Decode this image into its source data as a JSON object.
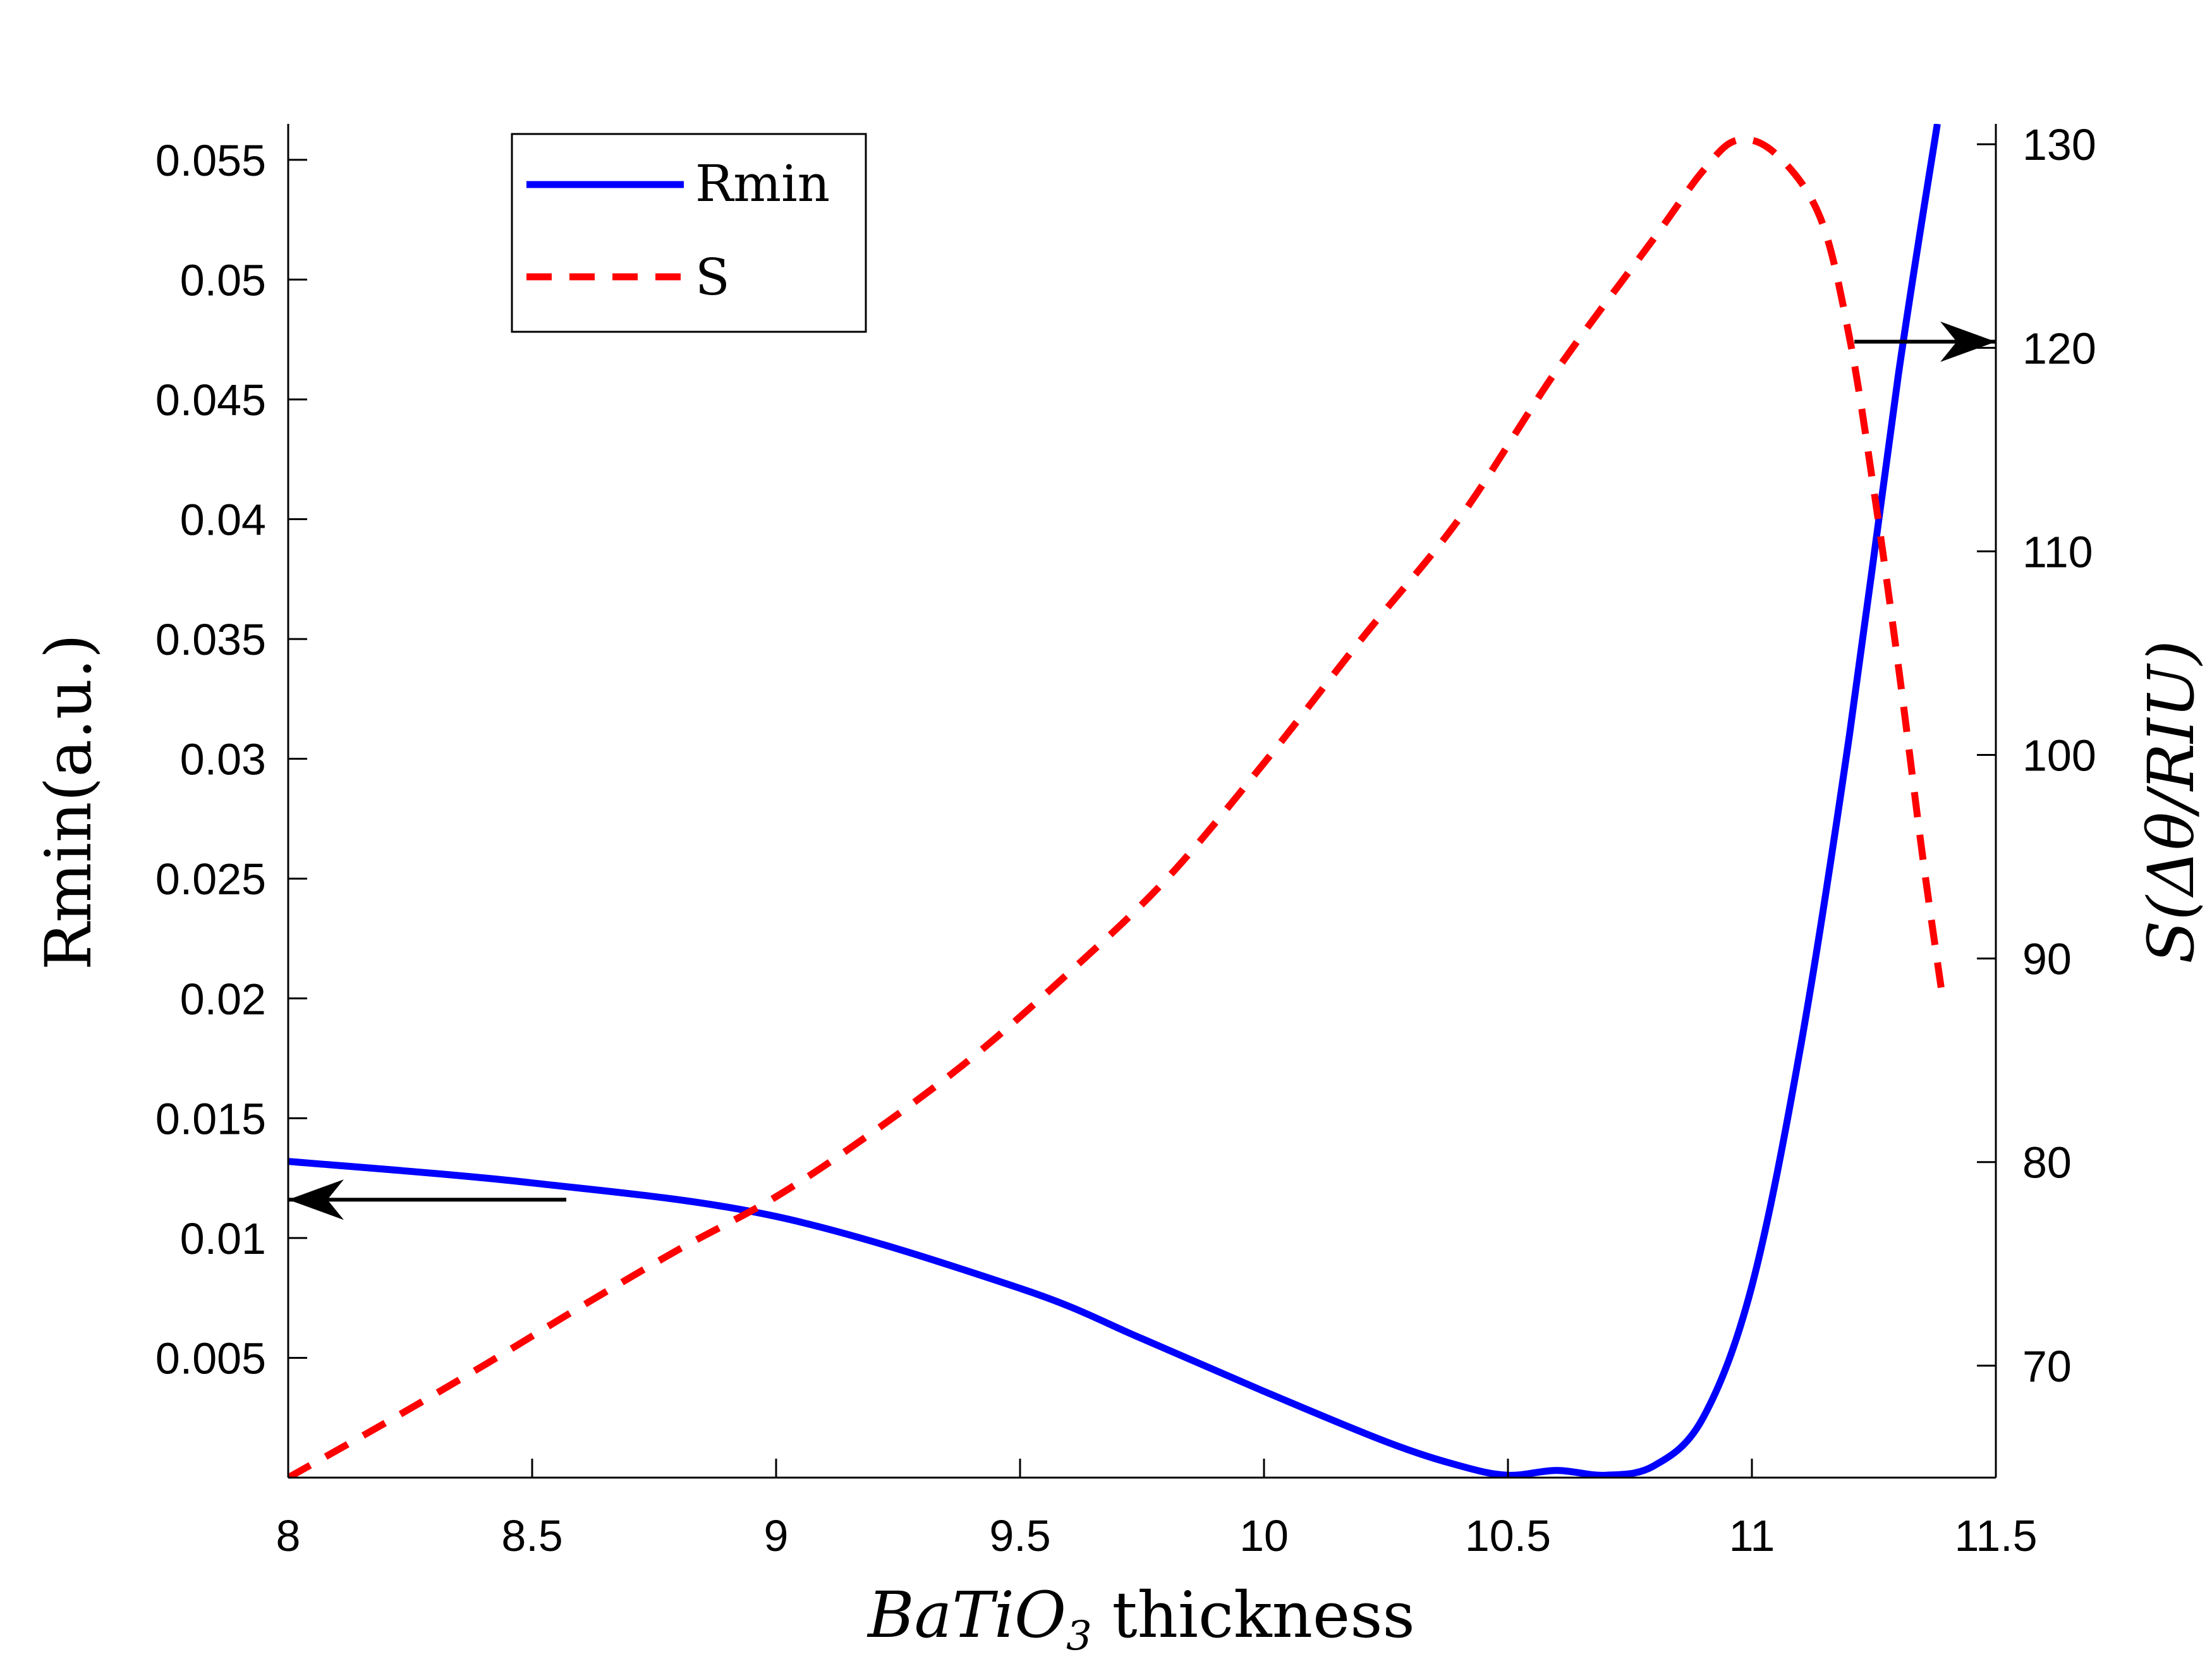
{
  "chart_data": {
    "type": "line",
    "xlabel": {
      "italic": "BaTiO",
      "sub": "3",
      "rest": " thickness"
    },
    "ylabel_left": "Rmin(a.u.)",
    "ylabel_right": "S(Δθ/RIU)",
    "xlim": [
      8,
      11.5
    ],
    "ylim_left": [
      0,
      0.0565
    ],
    "ylim_right": [
      64.5,
      131
    ],
    "x_ticks": [
      {
        "v": 8,
        "label": "8"
      },
      {
        "v": 8.5,
        "label": "8.5"
      },
      {
        "v": 9,
        "label": "9"
      },
      {
        "v": 9.5,
        "label": "9.5"
      },
      {
        "v": 10,
        "label": "10"
      },
      {
        "v": 10.5,
        "label": "10.5"
      },
      {
        "v": 11,
        "label": "11"
      },
      {
        "v": 11.5,
        "label": "11.5"
      }
    ],
    "y_left_ticks": [
      {
        "v": 0.005,
        "label": "0.005"
      },
      {
        "v": 0.01,
        "label": "0.01"
      },
      {
        "v": 0.015,
        "label": "0.015"
      },
      {
        "v": 0.02,
        "label": "0.02"
      },
      {
        "v": 0.025,
        "label": "0.025"
      },
      {
        "v": 0.03,
        "label": "0.03"
      },
      {
        "v": 0.035,
        "label": "0.035"
      },
      {
        "v": 0.04,
        "label": "0.04"
      },
      {
        "v": 0.045,
        "label": "0.045"
      },
      {
        "v": 0.05,
        "label": "0.05"
      },
      {
        "v": 0.055,
        "label": "0.055"
      }
    ],
    "y_right_ticks": [
      {
        "v": 70,
        "label": "70"
      },
      {
        "v": 80,
        "label": "80"
      },
      {
        "v": 90,
        "label": "90"
      },
      {
        "v": 100,
        "label": "100"
      },
      {
        "v": 110,
        "label": "110"
      },
      {
        "v": 120,
        "label": "120"
      },
      {
        "v": 130,
        "label": "130"
      }
    ],
    "legend": {
      "placement": "top-left",
      "entries": [
        "Rmin",
        "S"
      ]
    },
    "series": [
      {
        "name": "Rmin",
        "axis": "left",
        "color": "#0000ff",
        "style": "solid",
        "x": [
          8.0,
          8.5,
          9.0,
          9.5,
          9.75,
          10.0,
          10.25,
          10.4,
          10.5,
          10.6,
          10.7,
          10.8,
          10.9,
          11.0,
          11.1,
          11.2,
          11.3,
          11.38
        ],
        "y": [
          0.0132,
          0.0123,
          0.0109,
          0.0079,
          0.0058,
          0.0036,
          0.0015,
          0.0005,
          0.0001,
          0.0003,
          0.0001,
          0.0005,
          0.0025,
          0.008,
          0.018,
          0.031,
          0.046,
          0.0565
        ]
      },
      {
        "name": "S",
        "axis": "right",
        "color": "#ff0000",
        "style": "dashed",
        "x": [
          8.0,
          8.2,
          8.4,
          8.6,
          8.8,
          9.0,
          9.2,
          9.4,
          9.6,
          9.8,
          10.0,
          10.2,
          10.4,
          10.6,
          10.8,
          10.9,
          10.97,
          11.05,
          11.14,
          11.2,
          11.25,
          11.3,
          11.35,
          11.39
        ],
        "y": [
          64.5,
          67.2,
          70.0,
          72.9,
          75.7,
          78.3,
          81.5,
          85.1,
          89.3,
          93.9,
          99.6,
          105.7,
          111.6,
          118.9,
          125.4,
          128.7,
          130.2,
          129.5,
          126.4,
          120.5,
          113.0,
          104.4,
          95.0,
          88.2
        ]
      }
    ],
    "annotations": [
      {
        "type": "arrow",
        "direction": "left",
        "from": [
          8.57,
          0.0116
        ],
        "to": [
          8.0,
          0.0116
        ],
        "axis": "left"
      },
      {
        "type": "arrow",
        "direction": "right",
        "from": [
          11.21,
          120.3
        ],
        "to": [
          11.5,
          120.3
        ],
        "axis": "right"
      }
    ]
  }
}
